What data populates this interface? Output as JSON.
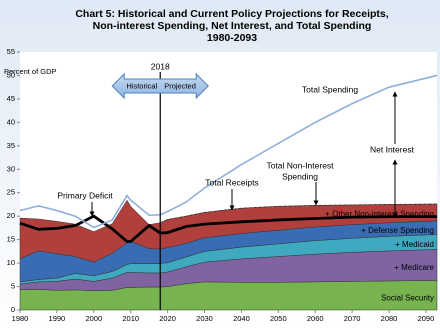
{
  "chart_data": {
    "type": "stacked-area",
    "title": [
      "Chart 5:  Historical and Current Policy Projections for Receipts,",
      "Non-interest Spending, Net Interest, and Total Spending",
      "1980-2093"
    ],
    "ylabel": "Percent of GDP",
    "x": [
      1980,
      1985,
      1990,
      1995,
      2000,
      2005,
      2009,
      2010,
      2015,
      2018,
      2020,
      2025,
      2030,
      2040,
      2050,
      2060,
      2070,
      2080,
      2093
    ],
    "xlim": [
      1980,
      2093
    ],
    "xticks": [
      1980,
      1990,
      2000,
      2010,
      2020,
      2030,
      2040,
      2050,
      2060,
      2070,
      2080,
      2090
    ],
    "ylim": [
      0,
      55
    ],
    "yticks": [
      0,
      5,
      10,
      15,
      20,
      25,
      30,
      35,
      40,
      45,
      50,
      55
    ],
    "grid": false,
    "series": [
      {
        "name": "Social Security",
        "color": "#77b34e",
        "values": [
          4.3,
          4.4,
          4.2,
          4.3,
          4.1,
          4.2,
          4.8,
          4.8,
          4.9,
          4.9,
          5.0,
          5.6,
          6.0,
          5.9,
          5.9,
          6.0,
          6.1,
          6.2,
          6.3
        ]
      },
      {
        "name": "+ Medicare",
        "color": "#8064a2",
        "values": [
          1.2,
          1.6,
          1.9,
          2.3,
          2.0,
          2.6,
          3.2,
          3.2,
          3.0,
          3.0,
          3.1,
          3.6,
          4.2,
          5.0,
          5.5,
          5.9,
          6.2,
          6.4,
          6.6
        ]
      },
      {
        "name": "+ Medicaid",
        "color": "#3fa9bf",
        "values": [
          0.5,
          0.5,
          0.7,
          1.2,
          1.2,
          1.4,
          1.7,
          1.9,
          2.0,
          2.0,
          2.0,
          2.1,
          2.3,
          2.5,
          2.7,
          2.9,
          3.0,
          3.1,
          3.2
        ]
      },
      {
        "name": "+ Defense Spending",
        "color": "#3a6cb3",
        "values": [
          4.9,
          6.1,
          5.2,
          3.6,
          2.9,
          3.9,
          4.6,
          4.7,
          3.2,
          3.1,
          3.2,
          2.9,
          2.9,
          2.9,
          2.9,
          2.9,
          2.9,
          2.9,
          2.9
        ]
      },
      {
        "name": "+ Other Non-interest Spending",
        "color": "#b1403c",
        "values": [
          8.7,
          6.8,
          6.9,
          6.9,
          6.5,
          6.3,
          9.1,
          7.5,
          5.1,
          5.6,
          6.0,
          5.8,
          5.4,
          5.4,
          5.1,
          4.6,
          4.2,
          3.9,
          3.6
        ]
      }
    ],
    "lines": [
      {
        "name": "Total Receipts",
        "color": "#000000",
        "values": [
          18.5,
          17.2,
          17.4,
          18.0,
          20.0,
          17.3,
          14.6,
          14.6,
          18.0,
          16.4,
          16.5,
          17.8,
          18.3,
          18.8,
          19.2,
          19.5,
          19.8,
          19.9,
          19.9
        ]
      },
      {
        "name": "Total Spending",
        "color": "#8fb0dc",
        "values": [
          21.2,
          22.2,
          21.2,
          20.0,
          17.6,
          19.2,
          24.4,
          23.4,
          20.2,
          20.3,
          21.0,
          23.0,
          26.0,
          31.0,
          35.5,
          40.0,
          44.0,
          47.5,
          50.0
        ]
      }
    ],
    "marker": 2018,
    "marker_labels": [
      "Historical",
      "Projected"
    ],
    "annotations": [
      "Total Spending",
      "Net Interest",
      [
        "Total Non-Interest",
        "Spending"
      ],
      "Total Receipts",
      "Primary Deficit"
    ]
  }
}
